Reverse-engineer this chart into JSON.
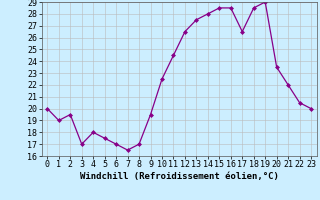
{
  "x": [
    0,
    1,
    2,
    3,
    4,
    5,
    6,
    7,
    8,
    9,
    10,
    11,
    12,
    13,
    14,
    15,
    16,
    17,
    18,
    19,
    20,
    21,
    22,
    23
  ],
  "y": [
    20.0,
    19.0,
    19.5,
    17.0,
    18.0,
    17.5,
    17.0,
    16.5,
    17.0,
    19.5,
    22.5,
    24.5,
    26.5,
    27.5,
    28.0,
    28.5,
    28.5,
    26.5,
    28.5,
    29.0,
    23.5,
    22.0,
    20.5,
    20.0
  ],
  "xlabel": "Windchill (Refroidissement éolien,°C)",
  "ylim": [
    16,
    29
  ],
  "xlim_min": -0.5,
  "xlim_max": 23.5,
  "yticks": [
    16,
    17,
    18,
    19,
    20,
    21,
    22,
    23,
    24,
    25,
    26,
    27,
    28,
    29
  ],
  "xticks": [
    0,
    1,
    2,
    3,
    4,
    5,
    6,
    7,
    8,
    9,
    10,
    11,
    12,
    13,
    14,
    15,
    16,
    17,
    18,
    19,
    20,
    21,
    22,
    23
  ],
  "line_color": "#880088",
  "marker": "D",
  "marker_size": 2.0,
  "bg_color": "#cceeff",
  "grid_color": "#bbbbbb",
  "xlabel_fontsize": 6.5,
  "tick_fontsize": 6.0,
  "linewidth": 0.9
}
